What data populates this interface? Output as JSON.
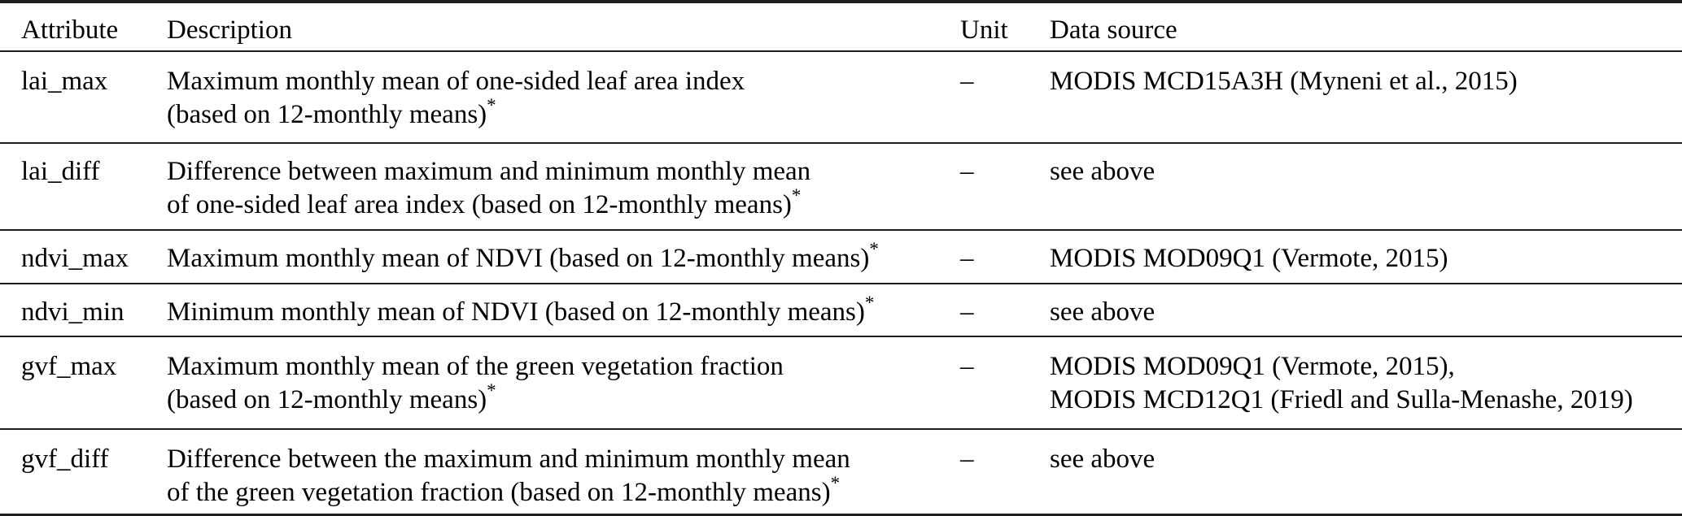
{
  "page": {
    "background": "#ffffff",
    "text_color": "#000000",
    "rule_color": "#1e1e1e"
  },
  "table": {
    "columns": {
      "attribute": "Attribute",
      "description": "Description",
      "unit": "Unit",
      "data_source": "Data source"
    },
    "rows": [
      {
        "attribute": "lai_max",
        "desc_line1": "Maximum monthly mean of one-sided leaf area index",
        "desc_line2": "(based on 12-monthly means)",
        "star": "*",
        "unit": "–",
        "source_line1": "MODIS MCD15A3H (Myneni et al., 2015)"
      },
      {
        "attribute": "lai_diff",
        "desc_line1": "Difference between maximum and minimum monthly mean",
        "desc_line2": "of one-sided leaf area index (based on 12-monthly means)",
        "star": "*",
        "unit": "–",
        "source_line1": "see above"
      },
      {
        "attribute": "ndvi_max",
        "desc_line1": "Maximum monthly mean of NDVI (based on 12-monthly means)",
        "star": "*",
        "unit": "–",
        "source_line1": "MODIS MOD09Q1 (Vermote, 2015)"
      },
      {
        "attribute": "ndvi_min",
        "desc_line1": "Minimum monthly mean of NDVI (based on 12-monthly means)",
        "star": "*",
        "unit": "–",
        "source_line1": "see above"
      },
      {
        "attribute": "gvf_max",
        "desc_line1": "Maximum monthly mean of the green vegetation fraction",
        "desc_line2": "(based on 12-monthly means)",
        "star": "*",
        "unit": "–",
        "source_line1": "MODIS MOD09Q1 (Vermote, 2015),",
        "source_line2": "MODIS MCD12Q1 (Friedl and Sulla-Menashe, 2019)"
      },
      {
        "attribute": "gvf_diff",
        "desc_line1": "Difference between the maximum and minimum monthly mean",
        "desc_line2": "of the green vegetation fraction (based on 12-monthly means)",
        "star": "*",
        "unit": "–",
        "source_line1": "see above"
      }
    ]
  }
}
